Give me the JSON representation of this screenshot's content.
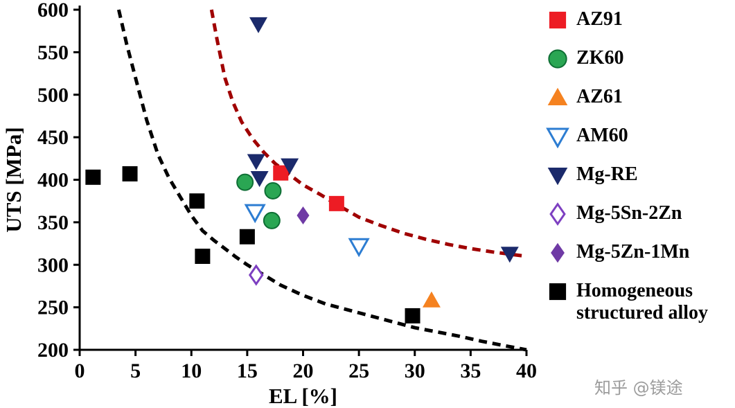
{
  "watermark": {
    "text": "知乎 @镁途"
  },
  "chart_data": {
    "type": "scatter",
    "title": "",
    "xlabel": "EL [%]",
    "ylabel": "UTS [MPa]",
    "xlim": [
      0,
      40
    ],
    "ylim": [
      200,
      600
    ],
    "xticks": [
      0,
      5,
      10,
      15,
      20,
      25,
      30,
      35,
      40
    ],
    "yticks": [
      200,
      250,
      300,
      350,
      400,
      450,
      500,
      550,
      600
    ],
    "grid": false,
    "legend_position": "right",
    "series": [
      {
        "name": "AZ91",
        "marker": "square",
        "color": "#ed1c24",
        "points": [
          [
            18,
            408
          ],
          [
            23,
            372
          ]
        ]
      },
      {
        "name": "ZK60",
        "marker": "circle",
        "color": "#2aa653",
        "edge": "#0e6e34",
        "points": [
          [
            14.8,
            397
          ],
          [
            17.3,
            387
          ],
          [
            17.2,
            352
          ]
        ]
      },
      {
        "name": "AZ61",
        "marker": "triangle-up",
        "color": "#f58220",
        "points": [
          [
            31.5,
            258
          ]
        ]
      },
      {
        "name": "AM60",
        "marker": "triangle-down-open",
        "color": "#2d7dd2",
        "points": [
          [
            15.7,
            362
          ],
          [
            25,
            322
          ]
        ]
      },
      {
        "name": "Mg-RE",
        "marker": "triangle-down",
        "color": "#1b2a6b",
        "points": [
          [
            16,
            583
          ],
          [
            15.8,
            422
          ],
          [
            16.1,
            402
          ],
          [
            18.8,
            417
          ],
          [
            38.5,
            313
          ]
        ]
      },
      {
        "name": "Mg-5Sn-2Zn",
        "marker": "diamond-open",
        "color": "#7d3fc1",
        "points": [
          [
            15.8,
            288
          ]
        ]
      },
      {
        "name": "Mg-5Zn-1Mn",
        "marker": "diamond",
        "color": "#6f3aa5",
        "points": [
          [
            20,
            358
          ]
        ]
      },
      {
        "name": "Homogeneous structured alloy",
        "marker": "square",
        "color": "#000000",
        "points": [
          [
            1.2,
            403
          ],
          [
            4.5,
            407
          ],
          [
            10.5,
            375
          ],
          [
            11,
            310
          ],
          [
            15,
            333
          ],
          [
            29.8,
            240
          ]
        ]
      }
    ],
    "curves": [
      {
        "name": "lower-bound-curve",
        "color": "#000000",
        "style": "dashed",
        "points": [
          [
            3.5,
            600
          ],
          [
            4.2,
            560
          ],
          [
            5,
            520
          ],
          [
            6,
            470
          ],
          [
            7,
            430
          ],
          [
            8,
            402
          ],
          [
            9,
            380
          ],
          [
            10,
            358
          ],
          [
            11,
            340
          ],
          [
            12,
            329
          ],
          [
            13,
            319
          ],
          [
            14,
            309
          ],
          [
            15,
            300
          ],
          [
            16.5,
            288
          ],
          [
            18,
            276
          ],
          [
            20,
            264
          ],
          [
            22,
            254
          ],
          [
            24,
            247
          ],
          [
            26,
            240
          ],
          [
            28,
            233
          ],
          [
            30,
            226
          ],
          [
            32,
            221
          ],
          [
            34,
            216
          ],
          [
            36,
            210
          ],
          [
            38,
            205
          ],
          [
            40,
            200
          ]
        ]
      },
      {
        "name": "upper-bound-curve",
        "color": "#a00000",
        "style": "dashed",
        "points": [
          [
            11.8,
            600
          ],
          [
            12.3,
            565
          ],
          [
            13,
            520
          ],
          [
            13.7,
            492
          ],
          [
            14.5,
            468
          ],
          [
            15.5,
            448
          ],
          [
            16.5,
            432
          ],
          [
            17.5,
            419
          ],
          [
            18.5,
            409
          ],
          [
            20,
            394
          ],
          [
            21.5,
            383
          ],
          [
            23,
            371
          ],
          [
            25,
            356
          ],
          [
            27,
            346
          ],
          [
            29,
            337
          ],
          [
            31,
            330
          ],
          [
            33,
            324
          ],
          [
            35,
            319
          ],
          [
            37,
            315
          ],
          [
            40,
            310
          ]
        ]
      }
    ]
  }
}
